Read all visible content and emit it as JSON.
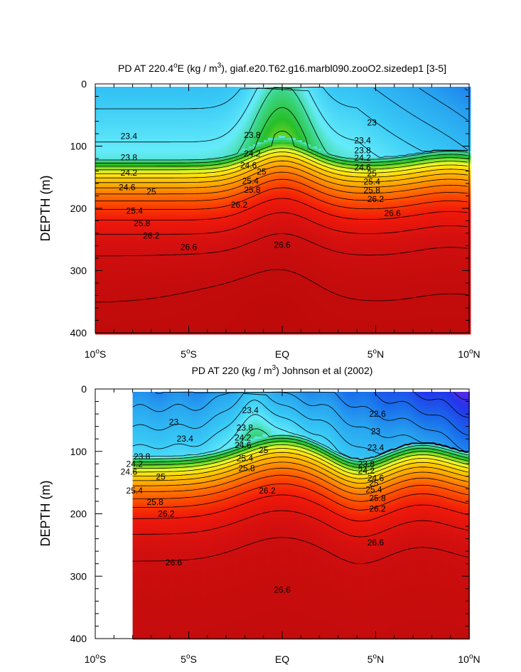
{
  "chart_data": [
    {
      "type": "heatmap",
      "title_parts": [
        "PD AT 220.4",
        "o",
        "E (kg / m",
        "3",
        "), giaf.e20.T62.g16.marbl090.zooO2.sizedep1 [3-5]"
      ],
      "xlabel": "",
      "ylabel": "DEPTH (m)",
      "xlim": [
        -10,
        10
      ],
      "ylim": [
        400,
        0
      ],
      "xticks": [
        {
          "value": -10,
          "label": "10",
          "sup": "o",
          "suffix": "S"
        },
        {
          "value": -5,
          "label": "5",
          "sup": "o",
          "suffix": "S"
        },
        {
          "value": 0,
          "label": "EQ",
          "sup": "",
          "suffix": ""
        },
        {
          "value": 5,
          "label": "5",
          "sup": "o",
          "suffix": "N"
        },
        {
          "value": 10,
          "label": "10",
          "sup": "o",
          "suffix": "N"
        }
      ],
      "yticks": [
        0,
        100,
        200,
        300,
        400
      ],
      "data_xrange": [
        -10,
        10
      ],
      "contour_levels": [
        22.6,
        22.8,
        23.0,
        23.2,
        23.4,
        23.6,
        23.8,
        24.0,
        24.2,
        24.4,
        24.6,
        24.8,
        25.0,
        25.2,
        25.4,
        25.6,
        25.8,
        26.0,
        26.2,
        26.4,
        26.6,
        26.8
      ],
      "labeled_contours": [
        {
          "text": "23.4",
          "x": -8.2,
          "y": 84
        },
        {
          "text": "23.8",
          "x": -1.6,
          "y": 82
        },
        {
          "text": "23",
          "x": 4.8,
          "y": 62
        },
        {
          "text": "23.4",
          "x": 4.3,
          "y": 91
        },
        {
          "text": "23.8",
          "x": -8.2,
          "y": 118
        },
        {
          "text": "24.2",
          "x": -1.6,
          "y": 112
        },
        {
          "text": "23.8",
          "x": 4.3,
          "y": 107
        },
        {
          "text": "24.2",
          "x": -8.2,
          "y": 143
        },
        {
          "text": "24.6",
          "x": -1.8,
          "y": 131
        },
        {
          "text": "24.2",
          "x": 4.3,
          "y": 119
        },
        {
          "text": "25",
          "x": -1.1,
          "y": 141
        },
        {
          "text": "24.6",
          "x": 4.3,
          "y": 134
        },
        {
          "text": "24.6",
          "x": -8.3,
          "y": 166
        },
        {
          "text": "25.4",
          "x": -1.7,
          "y": 156
        },
        {
          "text": "25",
          "x": 4.8,
          "y": 144
        },
        {
          "text": "25",
          "x": -7.0,
          "y": 173
        },
        {
          "text": "25.8",
          "x": -1.6,
          "y": 170
        },
        {
          "text": "25.4",
          "x": 4.8,
          "y": 157
        },
        {
          "text": "25.8",
          "x": 4.8,
          "y": 171
        },
        {
          "text": "26.2",
          "x": -2.3,
          "y": 194
        },
        {
          "text": "26.2",
          "x": 5.0,
          "y": 185
        },
        {
          "text": "25.4",
          "x": -7.9,
          "y": 204
        },
        {
          "text": "26.6",
          "x": 5.9,
          "y": 208
        },
        {
          "text": "25.8",
          "x": -7.5,
          "y": 224
        },
        {
          "text": "26.2",
          "x": -7.0,
          "y": 244
        },
        {
          "text": "26.6",
          "x": -5.0,
          "y": 262
        },
        {
          "text": "26.6",
          "x": 0.0,
          "y": 259
        }
      ]
    },
    {
      "type": "heatmap",
      "title_parts": [
        "PD AT 220 (kg / m",
        "3",
        ") Johnson et al (2002)"
      ],
      "xlabel": "",
      "ylabel": "DEPTH (m)",
      "xlim": [
        -10,
        10
      ],
      "ylim": [
        400,
        0
      ],
      "xticks": [
        {
          "value": -10,
          "label": "10",
          "sup": "o",
          "suffix": "S"
        },
        {
          "value": -5,
          "label": "5",
          "sup": "o",
          "suffix": "S"
        },
        {
          "value": 0,
          "label": "EQ",
          "sup": "",
          "suffix": ""
        },
        {
          "value": 5,
          "label": "5",
          "sup": "o",
          "suffix": "N"
        },
        {
          "value": 10,
          "label": "10",
          "sup": "o",
          "suffix": "N"
        }
      ],
      "yticks": [
        0,
        100,
        200,
        300,
        400
      ],
      "data_xrange": [
        -8,
        10
      ],
      "contour_levels": [
        22.0,
        22.2,
        22.4,
        22.6,
        22.8,
        23.0,
        23.2,
        23.4,
        23.6,
        23.8,
        24.0,
        24.2,
        24.4,
        24.6,
        24.8,
        25.0,
        25.2,
        25.4,
        25.6,
        25.8,
        26.0,
        26.2,
        26.4,
        26.6,
        26.8
      ],
      "labeled_contours": [
        {
          "text": "23",
          "x": -5.8,
          "y": 53
        },
        {
          "text": "23.4",
          "x": -1.7,
          "y": 34
        },
        {
          "text": "22.6",
          "x": 5.1,
          "y": 40
        },
        {
          "text": "23.4",
          "x": -5.2,
          "y": 80
        },
        {
          "text": "23.8",
          "x": -2.0,
          "y": 62
        },
        {
          "text": "23",
          "x": 5.0,
          "y": 68
        },
        {
          "text": "23.8",
          "x": -7.5,
          "y": 108
        },
        {
          "text": "24.2",
          "x": -2.1,
          "y": 78
        },
        {
          "text": "23.4",
          "x": 5.0,
          "y": 94
        },
        {
          "text": "24.2",
          "x": -7.9,
          "y": 120
        },
        {
          "text": "24.6",
          "x": -2.1,
          "y": 90
        },
        {
          "text": "25",
          "x": -1.0,
          "y": 98
        },
        {
          "text": "23.8",
          "x": 4.5,
          "y": 120
        },
        {
          "text": "24.6",
          "x": -8.2,
          "y": 133
        },
        {
          "text": "25.4",
          "x": -2.0,
          "y": 111
        },
        {
          "text": "24.2",
          "x": 4.5,
          "y": 131
        },
        {
          "text": "25",
          "x": -6.5,
          "y": 141
        },
        {
          "text": "25.8",
          "x": -1.9,
          "y": 127
        },
        {
          "text": "24.6",
          "x": 5.0,
          "y": 143
        },
        {
          "text": "25.4",
          "x": -7.9,
          "y": 163
        },
        {
          "text": "25",
          "x": 4.9,
          "y": 151
        },
        {
          "text": "25.8",
          "x": -6.8,
          "y": 181
        },
        {
          "text": "25.4",
          "x": 4.9,
          "y": 161
        },
        {
          "text": "26.2",
          "x": -0.8,
          "y": 163
        },
        {
          "text": "25.8",
          "x": 5.1,
          "y": 175
        },
        {
          "text": "26.2",
          "x": -6.2,
          "y": 200
        },
        {
          "text": "26.2",
          "x": 5.1,
          "y": 192
        },
        {
          "text": "26.6",
          "x": -5.8,
          "y": 278
        },
        {
          "text": "26.6",
          "x": 0.0,
          "y": 322
        },
        {
          "text": "26.6",
          "x": 5.0,
          "y": 246
        }
      ]
    }
  ]
}
